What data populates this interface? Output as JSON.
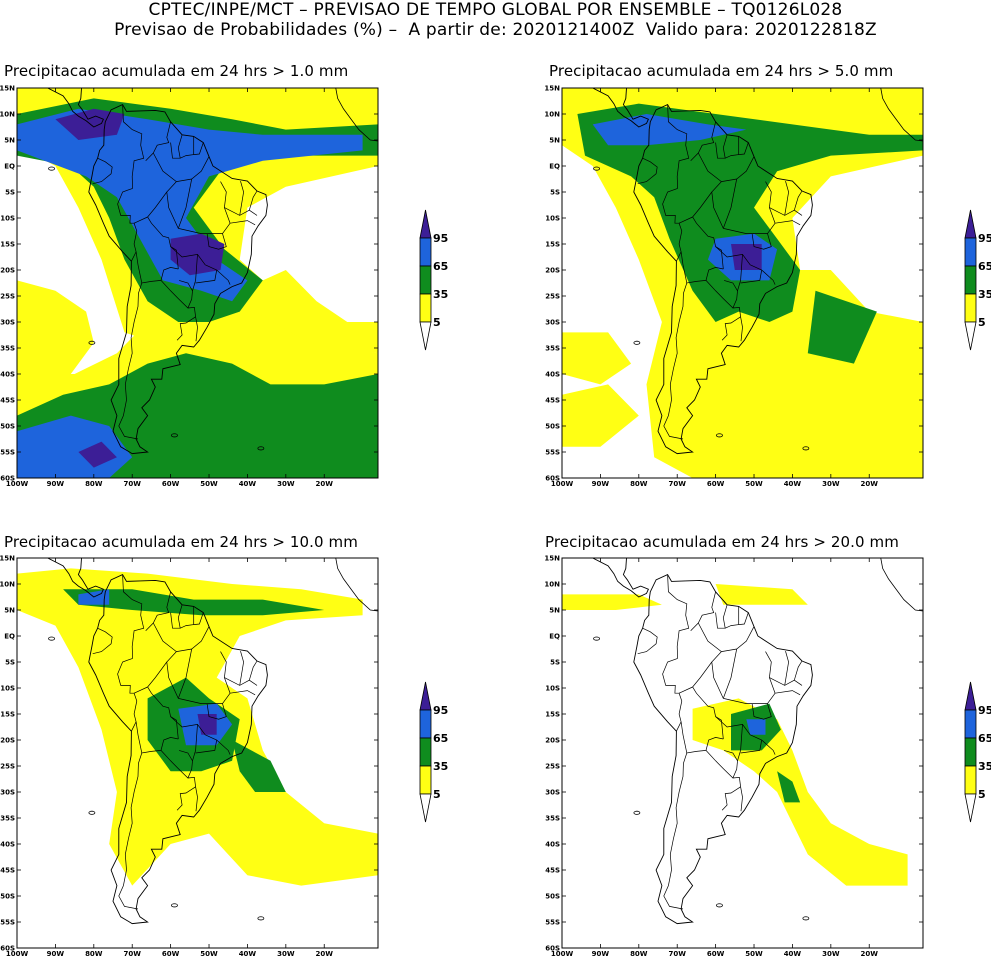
{
  "header": {
    "line1": "CPTEC/INPE/MCT – PREVISAO DE TEMPO GLOBAL POR ENSEMBLE – TQ0126L028",
    "line2": "Previsao de Probabilidades (%) –  A partir de: 2020121400Z  Valido para: 2020122818Z"
  },
  "colors": {
    "p5": "#ffff14",
    "p35": "#0f8c1e",
    "p65": "#1e64dc",
    "p95": "#3c1e96",
    "border": "#000000"
  },
  "axes": {
    "lat_labels": [
      "15N",
      "10N",
      "5N",
      "EQ",
      "5S",
      "10S",
      "15S",
      "20S",
      "25S",
      "30S",
      "35S",
      "40S",
      "45S",
      "50S",
      "55S",
      "60S"
    ],
    "lon_labels": [
      "100W",
      "90W",
      "80W",
      "70W",
      "60W",
      "50W",
      "40W",
      "30W",
      "20W"
    ]
  },
  "legend": {
    "labels": [
      "95",
      "65",
      "35",
      "5"
    ]
  },
  "panels": [
    {
      "title": "Precipitacao acumulada em 24 hrs > 1.0 mm",
      "threshold_mm": 1.0
    },
    {
      "title": "Precipitacao acumulada em 24 hrs > 5.0 mm",
      "threshold_mm": 5.0
    },
    {
      "title": "Precipitacao acumulada em 24 hrs > 10.0 mm",
      "threshold_mm": 10.0
    },
    {
      "title": "Precipitacao acumulada em 24 hrs > 20.0 mm",
      "threshold_mm": 20.0
    }
  ]
}
